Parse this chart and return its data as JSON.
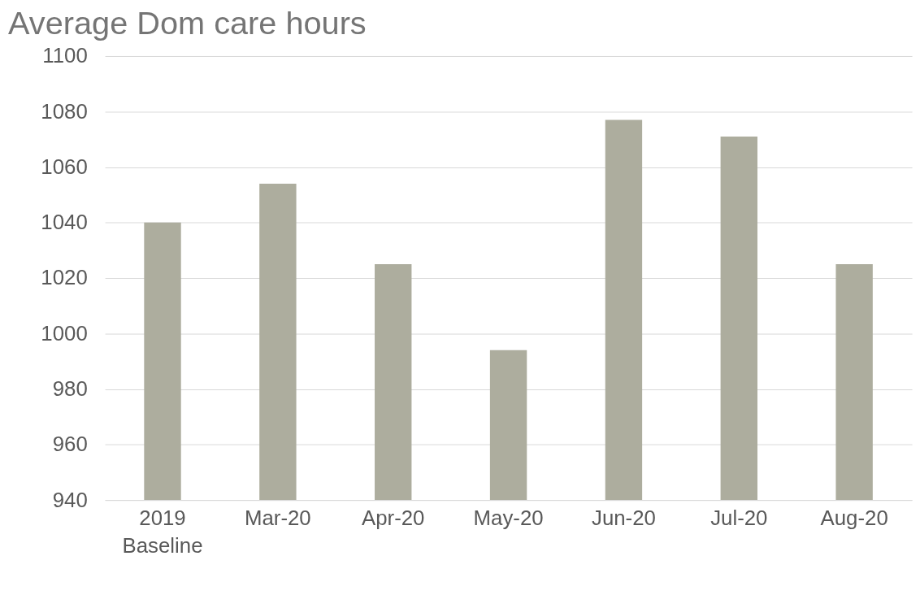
{
  "chart_data": {
    "type": "bar",
    "title": "Average Dom care hours",
    "categories": [
      "2019 Baseline",
      "Mar-20",
      "Apr-20",
      "May-20",
      "Jun-20",
      "Jul-20",
      "Aug-20"
    ],
    "values": [
      1040,
      1054,
      1025,
      994,
      1077,
      1071,
      1025
    ],
    "color": "#adad9e",
    "ylim": [
      940,
      1100
    ],
    "yticks": [
      940,
      960,
      980,
      1000,
      1020,
      1040,
      1060,
      1080,
      1100
    ],
    "grid": "y"
  }
}
